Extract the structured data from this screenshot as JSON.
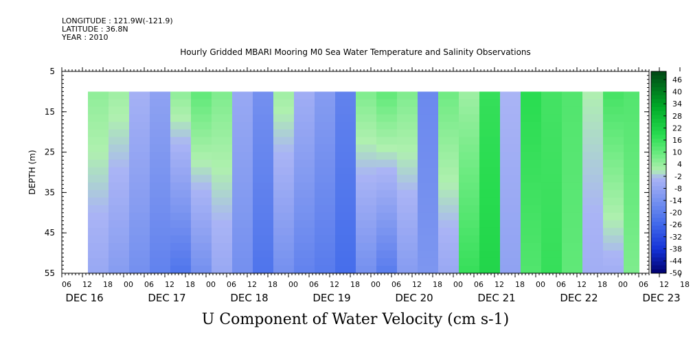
{
  "header": {
    "longitude": "LONGITUDE : 121.9W(-121.9)",
    "latitude": "LATITUDE : 36.8N",
    "year": "YEAR : 2010"
  },
  "chart_data": {
    "type": "heatmap",
    "title": "Hourly Gridded MBARI Mooring M0 Sea Water Temperature and Salinity Observations",
    "xlabel": "U Component of Water Velocity (cm s-1)",
    "ylabel": "DEPTH (m)",
    "ylim": [
      55,
      5
    ],
    "y_ticks": [
      5,
      15,
      25,
      35,
      45,
      55
    ],
    "hour_tick_labels": [
      "06",
      "12",
      "18",
      "00",
      "06",
      "12",
      "18",
      "00",
      "06",
      "12",
      "18",
      "00",
      "06",
      "12",
      "18",
      "00",
      "06",
      "12",
      "18",
      "00",
      "06",
      "12",
      "18",
      "00",
      "06",
      "12",
      "18",
      "00",
      "06",
      "12",
      "18",
      "00",
      "06"
    ],
    "day_labels": [
      "DEC 16",
      "DEC 17",
      "DEC 18",
      "DEC 19",
      "DEC 20",
      "DEC 21",
      "DEC 22",
      "DEC 23"
    ],
    "colorbar": {
      "labels": [
        "46",
        "40",
        "34",
        "28",
        "22",
        "16",
        "10",
        "4",
        "-2",
        "-8",
        "-14",
        "-20",
        "-26",
        "-32",
        "-38",
        "-44",
        "-50"
      ],
      "range": [
        -50,
        52
      ]
    },
    "data_depth_range": [
      10,
      55
    ],
    "columns": [
      {
        "t": 0,
        "top": 6,
        "bottom": -6
      },
      {
        "t": 6,
        "top": 4,
        "bottom": -10
      },
      {
        "t": 12,
        "top": -3,
        "bottom": -14
      },
      {
        "t": 18,
        "top": -8,
        "bottom": -18
      },
      {
        "t": 24,
        "top": 6,
        "bottom": -22
      },
      {
        "t": 30,
        "top": 12,
        "bottom": -14
      },
      {
        "t": 36,
        "top": 8,
        "bottom": -6
      },
      {
        "t": 42,
        "top": -6,
        "bottom": -14
      },
      {
        "t": 48,
        "top": -14,
        "bottom": -22
      },
      {
        "t": 54,
        "top": 4,
        "bottom": -14
      },
      {
        "t": 60,
        "top": -4,
        "bottom": -18
      },
      {
        "t": 66,
        "top": -10,
        "bottom": -20
      },
      {
        "t": 72,
        "top": -18,
        "bottom": -24
      },
      {
        "t": 78,
        "top": 8,
        "bottom": -14
      },
      {
        "t": 84,
        "top": 12,
        "bottom": -20
      },
      {
        "t": 90,
        "top": 8,
        "bottom": -10
      },
      {
        "t": 96,
        "top": -16,
        "bottom": -12
      },
      {
        "t": 102,
        "top": 10,
        "bottom": -6
      },
      {
        "t": 108,
        "top": 4,
        "bottom": 18
      },
      {
        "t": 114,
        "top": 18,
        "bottom": 22
      },
      {
        "t": 120,
        "top": -2,
        "bottom": -8
      },
      {
        "t": 126,
        "top": 20,
        "bottom": 14
      },
      {
        "t": 132,
        "top": 16,
        "bottom": 18
      },
      {
        "t": 138,
        "top": 14,
        "bottom": 12
      },
      {
        "t": 144,
        "top": 2,
        "bottom": -4
      },
      {
        "t": 150,
        "top": 16,
        "bottom": -4
      },
      {
        "t": 156,
        "top": 14,
        "bottom": 8
      },
      {
        "t": 162,
        "top": 4,
        "bottom": 12
      },
      {
        "t": 168,
        "top": -8,
        "bottom": -20
      },
      {
        "t": 174,
        "top": 6,
        "bottom": -8
      }
    ]
  }
}
